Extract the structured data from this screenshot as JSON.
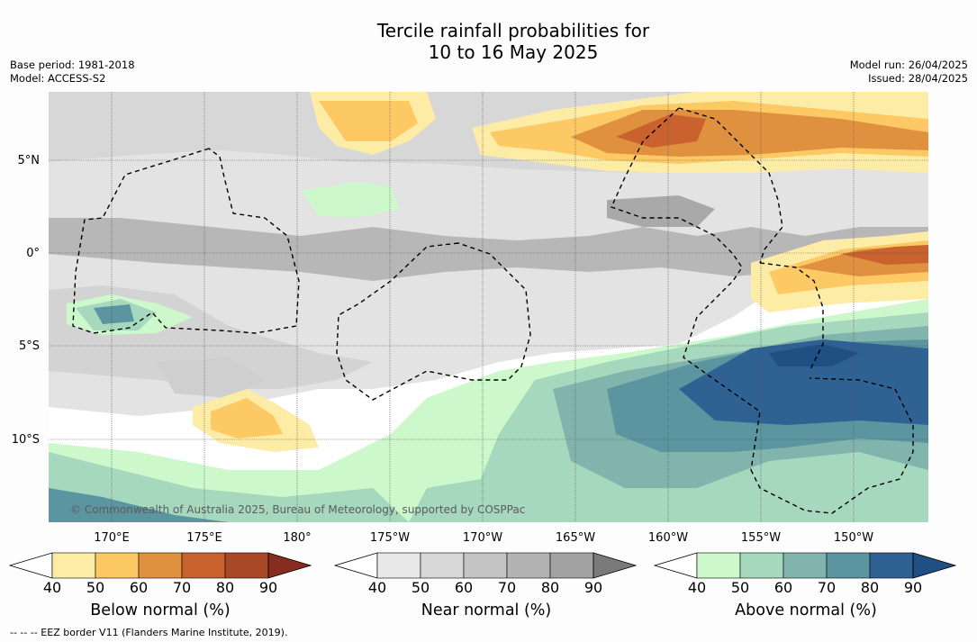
{
  "title": {
    "line1": "Tercile rainfall probabilities for",
    "line2": "10 to 16 May 2025"
  },
  "meta_left": {
    "base_period": "Base period: 1981-2018",
    "model": "Model: ACCESS-S2"
  },
  "meta_right": {
    "model_run": "Model run: 26/04/2025",
    "issued": "Issued: 28/04/2025"
  },
  "map": {
    "lat_labels": [
      "5°N",
      "0°",
      "5°S",
      "10°S"
    ],
    "lon_labels": [
      "170°E",
      "175°E",
      "180°",
      "175°W",
      "170°W",
      "165°W",
      "160°W",
      "155°W",
      "150°W"
    ],
    "copyright": "© Commonwealth of Australia 2025, Bureau of Meteorology, supported by COSPPac",
    "eez_line_color": "#000000"
  },
  "legends": [
    {
      "name": "below",
      "title": "Below normal (%)",
      "ticks": [
        "40",
        "50",
        "60",
        "70",
        "80",
        "90"
      ],
      "colors": [
        "#ffffff",
        "#fdeca6",
        "#fcc965",
        "#e0913f",
        "#c9622f",
        "#a94827",
        "#862d1f"
      ]
    },
    {
      "name": "near",
      "title": "Near normal (%)",
      "ticks": [
        "40",
        "50",
        "60",
        "70",
        "80",
        "90"
      ],
      "colors": [
        "#ffffff",
        "#e8e8e8",
        "#d7d7d7",
        "#c4c4c4",
        "#b3b3b3",
        "#a2a2a2",
        "#7a7a7a"
      ]
    },
    {
      "name": "above",
      "title": "Above normal (%)",
      "ticks": [
        "40",
        "50",
        "60",
        "70",
        "80",
        "90"
      ],
      "colors": [
        "#ffffff",
        "#ccf8cc",
        "#a6d8bd",
        "#82b4ae",
        "#5b95a0",
        "#2f6293",
        "#1f4f83"
      ]
    }
  ],
  "footnote": "-- -- -- EEZ border V11 (Flanders Marine Institute, 2019)."
}
